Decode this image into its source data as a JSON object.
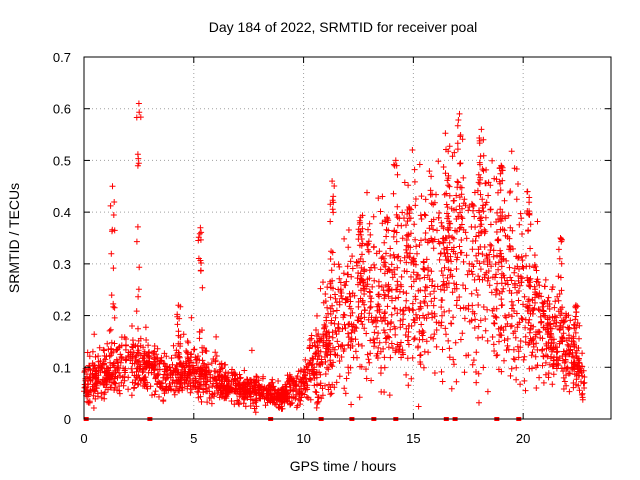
{
  "chart_data": {
    "type": "scatter",
    "title": "Day 184 of 2022, SRMTID for receiver poal",
    "xlabel": "GPS time / hours",
    "ylabel": "SRMTID / TECUs",
    "xlim": [
      0,
      24
    ],
    "ylim": [
      0,
      0.7
    ],
    "xticks": [
      0,
      5,
      10,
      15,
      20
    ],
    "yticks": [
      0,
      0.1,
      0.2,
      0.3,
      0.4,
      0.5,
      0.6,
      0.7
    ],
    "xtick_labels": [
      "0",
      "5",
      "10",
      "15",
      "20"
    ],
    "ytick_labels": [
      "0",
      "0.1",
      "0.2",
      "0.3",
      "0.4",
      "0.5",
      "0.6",
      "0.7"
    ],
    "grid": true,
    "marker": "+",
    "color": "#ff0000",
    "trend": [
      {
        "x": 0.0,
        "y": 0.065
      },
      {
        "x": 1.0,
        "y": 0.09
      },
      {
        "x": 2.0,
        "y": 0.11
      },
      {
        "x": 3.0,
        "y": 0.1
      },
      {
        "x": 4.0,
        "y": 0.085
      },
      {
        "x": 5.0,
        "y": 0.095
      },
      {
        "x": 6.0,
        "y": 0.075
      },
      {
        "x": 7.0,
        "y": 0.06
      },
      {
        "x": 8.0,
        "y": 0.05
      },
      {
        "x": 9.0,
        "y": 0.045
      },
      {
        "x": 10.0,
        "y": 0.07
      },
      {
        "x": 11.0,
        "y": 0.15
      },
      {
        "x": 12.0,
        "y": 0.2
      },
      {
        "x": 13.0,
        "y": 0.22
      },
      {
        "x": 14.0,
        "y": 0.23
      },
      {
        "x": 15.0,
        "y": 0.26
      },
      {
        "x": 16.0,
        "y": 0.29
      },
      {
        "x": 17.0,
        "y": 0.3
      },
      {
        "x": 18.0,
        "y": 0.32
      },
      {
        "x": 19.0,
        "y": 0.27
      },
      {
        "x": 20.0,
        "y": 0.25
      },
      {
        "x": 21.0,
        "y": 0.17
      },
      {
        "x": 22.0,
        "y": 0.14
      },
      {
        "x": 22.8,
        "y": 0.07
      }
    ],
    "peaks": [
      {
        "x": 1.3,
        "y": 0.45
      },
      {
        "x": 2.5,
        "y": 0.61
      },
      {
        "x": 4.3,
        "y": 0.22
      },
      {
        "x": 5.3,
        "y": 0.37
      },
      {
        "x": 11.3,
        "y": 0.46
      },
      {
        "x": 12.6,
        "y": 0.39
      },
      {
        "x": 13.8,
        "y": 0.39
      },
      {
        "x": 14.2,
        "y": 0.5
      },
      {
        "x": 14.8,
        "y": 0.41
      },
      {
        "x": 16.6,
        "y": 0.47
      },
      {
        "x": 17.1,
        "y": 0.59
      },
      {
        "x": 18.1,
        "y": 0.56
      },
      {
        "x": 19.0,
        "y": 0.49
      },
      {
        "x": 20.2,
        "y": 0.44
      },
      {
        "x": 21.7,
        "y": 0.35
      },
      {
        "x": 22.4,
        "y": 0.22
      }
    ],
    "rug_x": [
      0.1,
      3.0,
      8.5,
      10.8,
      12.2,
      13.2,
      14.2,
      16.5,
      16.9,
      18.8,
      19.8
    ]
  }
}
